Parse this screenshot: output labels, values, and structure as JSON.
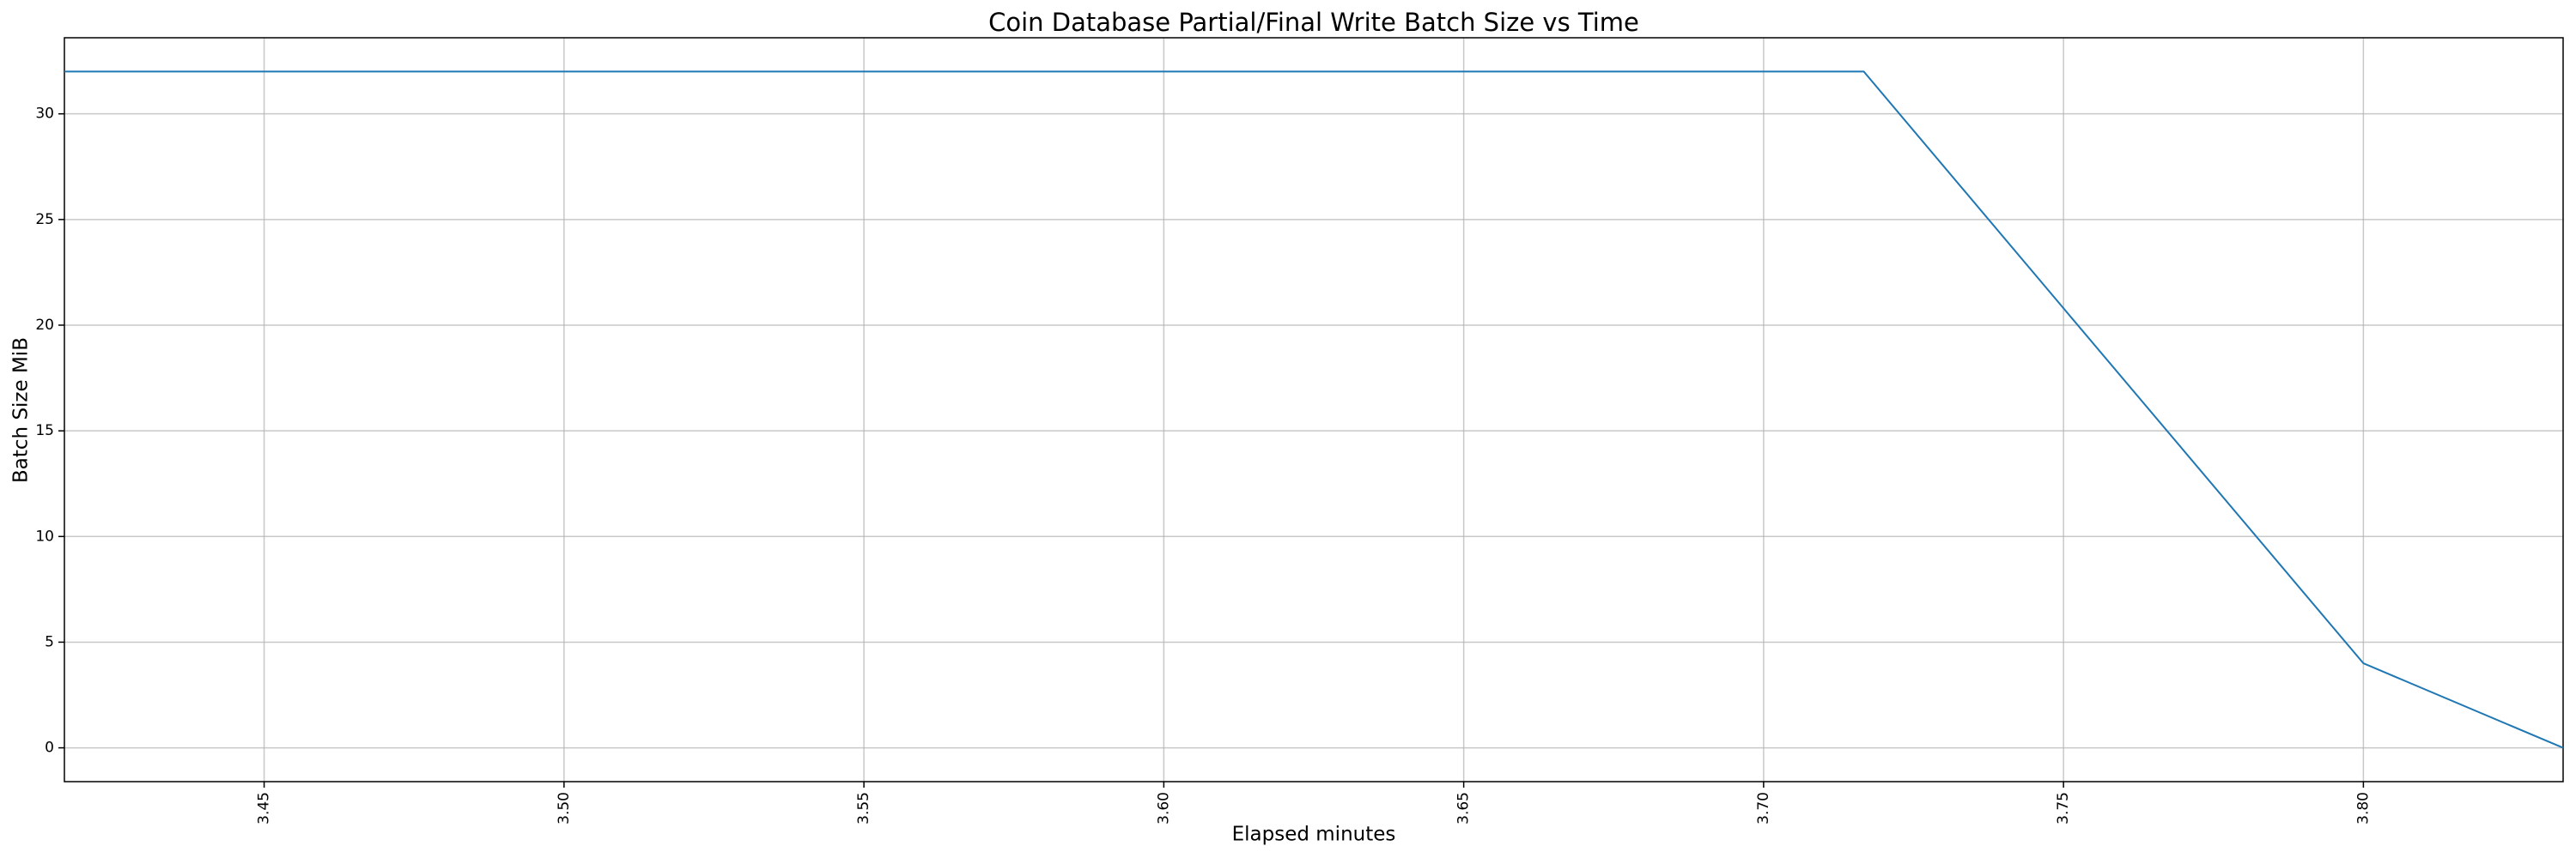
{
  "chart_data": {
    "type": "line",
    "title": "Coin Database Partial/Final Write Batch Size vs Time",
    "x_label": "Elapsed minutes",
    "y_label": "Batch Size MiB",
    "x": [
      3.4167,
      3.7167,
      3.75,
      3.8,
      3.8333
    ],
    "series": [
      {
        "color": "#1f77b4",
        "values": [
          32,
          32,
          20.8,
          4,
          0
        ]
      }
    ],
    "xlim": [
      3.4167,
      3.8333
    ],
    "ylim": [
      -1.6,
      33.6
    ],
    "xticks": [
      3.45,
      {
        "value": 3.5,
        "label": "3.50"
      },
      3.55,
      {
        "value": 3.6,
        "label": "3.60"
      },
      3.65,
      {
        "value": 3.7,
        "label": "3.70"
      },
      3.75,
      {
        "value": 3.8,
        "label": "3.80"
      }
    ],
    "yticks": [
      0,
      5,
      10,
      15,
      20,
      25,
      30
    ],
    "grid": true
  }
}
